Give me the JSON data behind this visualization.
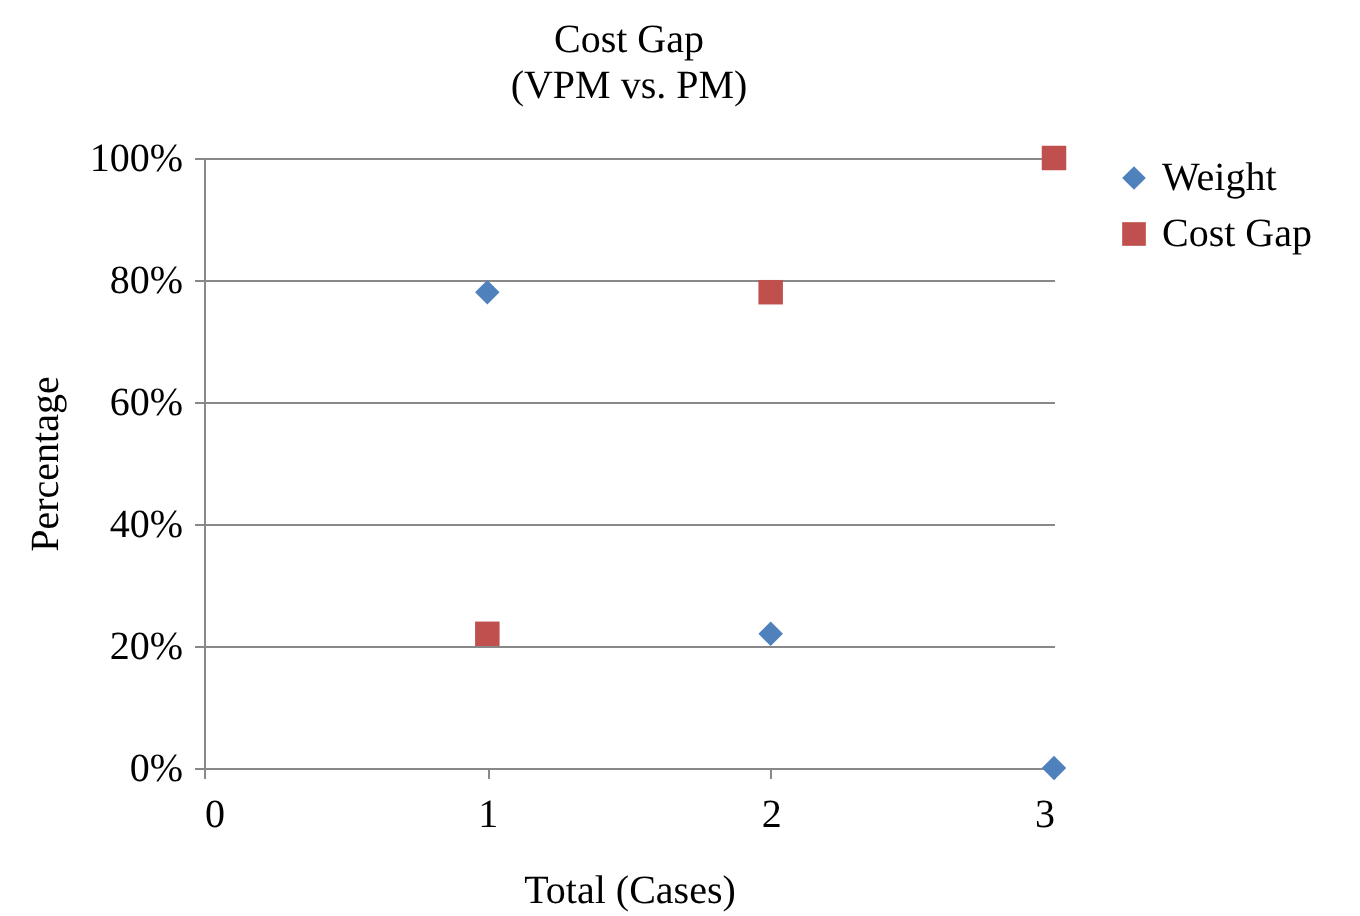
{
  "chart_data": {
    "type": "scatter",
    "title": "Cost Gap",
    "subtitle": "(VPM vs. PM)",
    "xlabel": "Total (Cases)",
    "ylabel": "Percentage",
    "x": [
      1,
      2,
      3
    ],
    "series": [
      {
        "name": "Weight",
        "color": "#4f81bd",
        "marker": "diamond",
        "values": [
          78,
          22,
          0
        ]
      },
      {
        "name": "Cost Gap",
        "color": "#c0504d",
        "marker": "square",
        "values": [
          22,
          78,
          100
        ]
      }
    ],
    "xlim": [
      0,
      3
    ],
    "xticks": [
      0,
      1,
      2,
      3
    ],
    "ylim": [
      0,
      100
    ],
    "yticks": [
      {
        "value": 0,
        "label": "0%"
      },
      {
        "value": 20,
        "label": "20%"
      },
      {
        "value": 40,
        "label": "40%"
      },
      {
        "value": 60,
        "label": "60%"
      },
      {
        "value": 80,
        "label": "80%"
      },
      {
        "value": 100,
        "label": "100%"
      }
    ],
    "grid": "y",
    "legend": "right"
  }
}
